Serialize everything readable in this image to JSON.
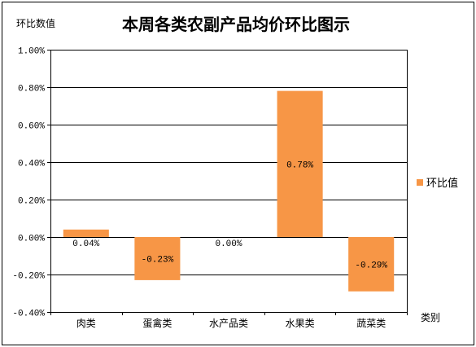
{
  "chart_data": {
    "type": "bar",
    "title": "本周各类农副产品均价环比图示",
    "ylabel": "环比数值",
    "xlabel": "类别",
    "categories": [
      "肉类",
      "蛋禽类",
      "水产品类",
      "水果类",
      "蔬菜类"
    ],
    "series": [
      {
        "name": "环比值",
        "values": [
          0.04,
          -0.23,
          0.0,
          0.78,
          -0.29
        ],
        "labels": [
          "0.04%",
          "-0.23%",
          "0.00%",
          "0.78%",
          "-0.29%"
        ],
        "color": "#F79646"
      }
    ],
    "ylim": [
      -0.4,
      1.0
    ],
    "yticks": [
      1.0,
      0.8,
      0.6,
      0.4,
      0.2,
      0.0,
      -0.2,
      -0.4
    ],
    "ytick_labels": [
      "1.00%",
      "0.80%",
      "0.60%",
      "0.40%",
      "0.20%",
      "0.00%",
      "-0.20%",
      "-0.40%"
    ],
    "grid": true,
    "legend": "right"
  }
}
